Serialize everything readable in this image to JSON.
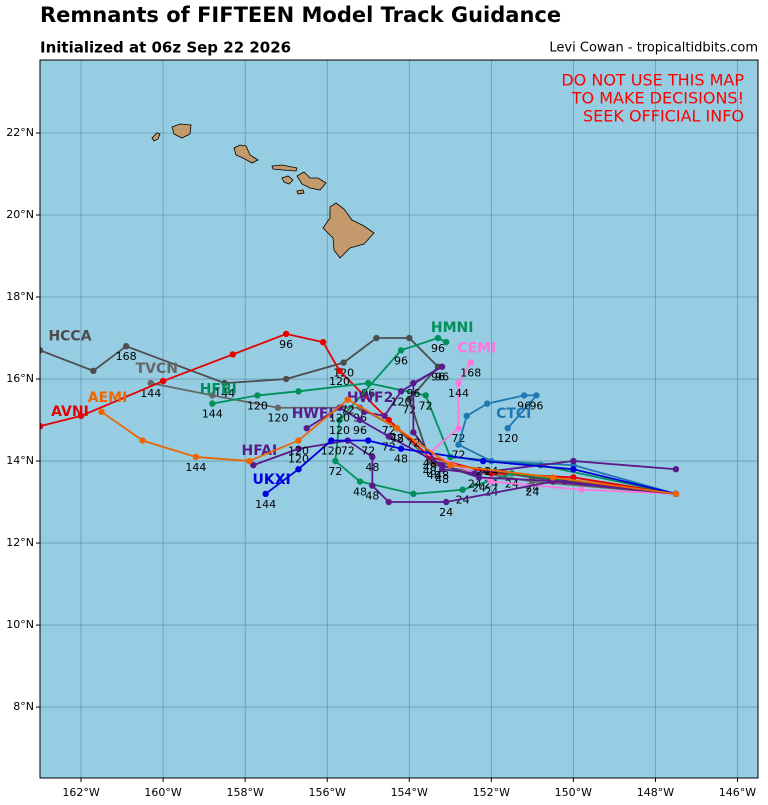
{
  "header": {
    "title": "Remnants of FIFTEEN Model Track Guidance",
    "subtitle": "Initialized at 06z Sep 22 2026",
    "credit": "Levi Cowan - tropicaltidbits.com"
  },
  "warning": [
    "DO NOT USE THIS MAP",
    "TO MAKE DECISIONS!",
    "SEEK OFFICIAL INFO"
  ],
  "map": {
    "xlim": [
      -163,
      -145.5
    ],
    "ylim": [
      6.27,
      23.78
    ],
    "xticks": [
      {
        "value": -162,
        "label": "162°W"
      },
      {
        "value": -160,
        "label": "160°W"
      },
      {
        "value": -158,
        "label": "158°W"
      },
      {
        "value": -156,
        "label": "156°W"
      },
      {
        "value": -154,
        "label": "154°W"
      },
      {
        "value": -152,
        "label": "152°W"
      },
      {
        "value": -150,
        "label": "150°W"
      },
      {
        "value": -148,
        "label": "148°W"
      },
      {
        "value": -146,
        "label": "146°W"
      }
    ],
    "yticks": [
      {
        "value": 8,
        "label": "8°N"
      },
      {
        "value": 10,
        "label": "10°N"
      },
      {
        "value": 12,
        "label": "12°N"
      },
      {
        "value": 14,
        "label": "14°N"
      },
      {
        "value": 16,
        "label": "16°N"
      },
      {
        "value": 18,
        "label": "18°N"
      },
      {
        "value": 20,
        "label": "20°N"
      },
      {
        "value": 22,
        "label": "22°N"
      }
    ],
    "grid": true
  },
  "tracks": [
    {
      "name": "HCCA",
      "color": "#4d4d4d",
      "points": [
        [
          -147.5,
          13.2
        ],
        [
          -151,
          13.6
        ],
        [
          -153.5,
          14
        ],
        [
          -154,
          15.5
        ],
        [
          -153.3,
          16.3
        ],
        [
          -154,
          17
        ],
        [
          -154.8,
          17
        ],
        [
          -155.6,
          16.4
        ],
        [
          -157,
          16
        ],
        [
          -158.5,
          15.9
        ],
        [
          -160.9,
          16.8
        ],
        [
          -161.7,
          16.2
        ],
        [
          -163,
          16.7
        ]
      ],
      "hours": [
        null,
        24,
        48,
        72,
        96,
        null,
        null,
        120,
        null,
        144,
        168,
        null,
        null
      ]
    },
    {
      "name": "TVCN",
      "color": "#666666",
      "points": [
        [
          -147.5,
          13.2
        ],
        [
          -151,
          13.5
        ],
        [
          -153.4,
          13.9
        ],
        [
          -154.3,
          14.8
        ],
        [
          -155.2,
          15.3
        ],
        [
          -157.2,
          15.3
        ],
        [
          -158.8,
          15.6
        ],
        [
          -160.3,
          15.9
        ]
      ],
      "hours": [
        null,
        24,
        48,
        72,
        96,
        120,
        null,
        144
      ]
    },
    {
      "name": "AVNI",
      "color": "#e60000",
      "points": [
        [
          -147.5,
          13.2
        ],
        [
          -150,
          13.6
        ],
        [
          -152,
          13.7
        ],
        [
          -153.5,
          14.1
        ],
        [
          -154.5,
          15
        ],
        [
          -155.7,
          16.2
        ],
        [
          -156.1,
          16.9
        ],
        [
          -157,
          17.1
        ],
        [
          -158.3,
          16.6
        ],
        [
          -160,
          15.95
        ],
        [
          -162,
          15.1
        ],
        [
          -163,
          14.85
        ]
      ],
      "hours": [
        null,
        null,
        24,
        48,
        72,
        120,
        null,
        96,
        null,
        null,
        null,
        null
      ]
    },
    {
      "name": "HFBI",
      "color": "#00905a",
      "points": [
        [
          -147.5,
          13.2
        ],
        [
          -150.8,
          13.9
        ],
        [
          -153,
          14.1
        ],
        [
          -153.6,
          15.6
        ],
        [
          -155,
          15.9
        ],
        [
          -156.7,
          15.7
        ],
        [
          -157.7,
          15.6
        ],
        [
          -158.8,
          15.4
        ]
      ],
      "hours": [
        null,
        null,
        null,
        72,
        96,
        null,
        120,
        144
      ]
    },
    {
      "name": "HMNI",
      "color": "#00905a",
      "points": [
        [
          -147.5,
          13.2
        ],
        [
          -151.5,
          13.7
        ],
        [
          -152.7,
          13.3
        ],
        [
          -153.9,
          13.2
        ],
        [
          -155.2,
          13.5
        ],
        [
          -155.8,
          14
        ],
        [
          -155.7,
          15
        ],
        [
          -154.2,
          16.7
        ],
        [
          -153.3,
          17
        ],
        [
          -153.1,
          16.9
        ]
      ],
      "hours": [
        null,
        24,
        24,
        null,
        48,
        72,
        120,
        96,
        96,
        null
      ]
    },
    {
      "name": "CEMI",
      "color": "#ff77dd",
      "points": [
        [
          -147.5,
          13.2
        ],
        [
          -149.8,
          13.3
        ],
        [
          -152,
          13.5
        ],
        [
          -153.5,
          14.2
        ],
        [
          -152.8,
          14.8
        ],
        [
          -152.8,
          15.9
        ],
        [
          -152.5,
          16.4
        ]
      ],
      "hours": [
        null,
        null,
        24,
        48,
        72,
        144,
        168
      ]
    },
    {
      "name": "CTCI",
      "color": "#1f78b4",
      "points": [
        [
          -147.5,
          13.2
        ],
        [
          -150,
          13.9
        ],
        [
          -152,
          14
        ],
        [
          -152.8,
          14.4
        ],
        [
          -152.6,
          15.1
        ],
        [
          -152.1,
          15.4
        ],
        [
          -151.2,
          15.6
        ],
        [
          -150.9,
          15.6
        ],
        [
          -151.6,
          14.8
        ]
      ],
      "hours": [
        null,
        null,
        24,
        72,
        null,
        null,
        96,
        96,
        120
      ]
    },
    {
      "name": "HWF2",
      "color": "#5a1a8c",
      "points": [
        [
          -147.5,
          13.8
        ],
        [
          -150,
          14
        ],
        [
          -152.4,
          13.7
        ],
        [
          -153.2,
          13.8
        ],
        [
          -153.9,
          14.7
        ],
        [
          -153.9,
          15.9
        ],
        [
          -153.2,
          16.3
        ],
        [
          -154.2,
          15.7
        ],
        [
          -154.6,
          15.1
        ],
        [
          -155.1,
          15.2
        ]
      ],
      "hours": [
        null,
        null,
        24,
        48,
        72,
        96,
        96,
        120,
        null,
        null
      ]
    },
    {
      "name": "HWFI",
      "color": "#5a1a8c",
      "points": [
        [
          -147.5,
          13.2
        ],
        [
          -150.2,
          13.5
        ],
        [
          -152.3,
          13.6
        ],
        [
          -153.2,
          13.9
        ],
        [
          -154.5,
          14.6
        ],
        [
          -155.2,
          15
        ],
        [
          -155.7,
          15.3
        ],
        [
          -156.5,
          14.8
        ]
      ],
      "hours": [
        null,
        null,
        24,
        48,
        72,
        96,
        120,
        null
      ]
    },
    {
      "name": "HFAI",
      "color": "#5a1a8c",
      "points": [
        [
          -147.5,
          13.2
        ],
        [
          -150.5,
          13.5
        ],
        [
          -153.1,
          13
        ],
        [
          -154.5,
          13
        ],
        [
          -154.9,
          13.4
        ],
        [
          -154.9,
          14.1
        ],
        [
          -155.5,
          14.5
        ],
        [
          -156.7,
          14.3
        ],
        [
          -157.8,
          13.9
        ]
      ],
      "hours": [
        null,
        null,
        24,
        null,
        48,
        48,
        72,
        120,
        null
      ]
    },
    {
      "name": "UKXI",
      "color": "#0000dd",
      "points": [
        [
          -147.5,
          13.2
        ],
        [
          -150,
          13.8
        ],
        [
          -152.2,
          14
        ],
        [
          -154.2,
          14.3
        ],
        [
          -155,
          14.5
        ],
        [
          -155.9,
          14.5
        ],
        [
          -156.7,
          13.8
        ],
        [
          -157.5,
          13.2
        ]
      ],
      "hours": [
        null,
        null,
        24,
        48,
        72,
        120,
        null,
        144
      ]
    },
    {
      "name": "AEMI",
      "color": "#ee6600",
      "points": [
        [
          -147.5,
          13.2
        ],
        [
          -150.5,
          13.6
        ],
        [
          -153,
          13.9
        ],
        [
          -154.3,
          14.8
        ],
        [
          -155.5,
          15.5
        ],
        [
          -156.7,
          14.5
        ],
        [
          -157.9,
          14
        ],
        [
          -159.2,
          14.1
        ],
        [
          -160.5,
          14.5
        ],
        [
          -161.5,
          15.2
        ]
      ],
      "hours": [
        null,
        null,
        null,
        48,
        72,
        120,
        null,
        144,
        null,
        null
      ]
    }
  ]
}
